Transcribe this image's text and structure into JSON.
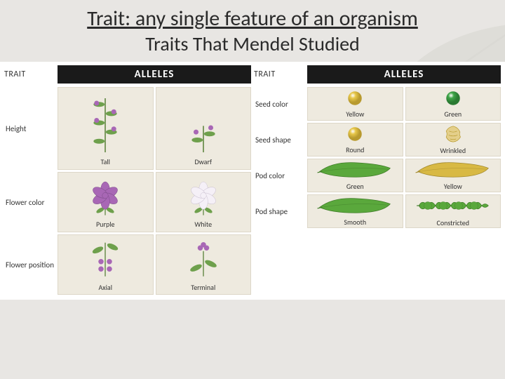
{
  "header": {
    "title": "Trait: any single feature of an organism",
    "subtitle": "Traits That Mendel Studied"
  },
  "column_headers": {
    "trait": "TRAIT",
    "alleles": "ALLELES"
  },
  "colors": {
    "cell_bg": "#eeeadf",
    "header_band": "#1a1a1a",
    "purple_flower": "#a867b5",
    "white_flower": "#f5f0f7",
    "green_plant": "#6ea04c",
    "stem": "#6b8e4e",
    "seed_yellow": "#e8c84a",
    "seed_green": "#3fa648",
    "pod_green": "#5aa83c",
    "pod_yellow": "#d8b944"
  },
  "left": [
    {
      "name": "Height",
      "size": "tall",
      "alleles": [
        {
          "label": "Tall",
          "svg": "plant-tall"
        },
        {
          "label": "Dwarf",
          "svg": "plant-dwarf"
        }
      ]
    },
    {
      "name": "Flower color",
      "size": "med",
      "alleles": [
        {
          "label": "Purple",
          "svg": "flower-purple"
        },
        {
          "label": "White",
          "svg": "flower-white"
        }
      ]
    },
    {
      "name": "Flower position",
      "size": "med",
      "alleles": [
        {
          "label": "Axial",
          "svg": "pos-axial"
        },
        {
          "label": "Terminal",
          "svg": "pos-terminal"
        }
      ]
    }
  ],
  "right": [
    {
      "name": "Seed color",
      "size": "short",
      "alleles": [
        {
          "label": "Yellow",
          "svg": "seed-yellow"
        },
        {
          "label": "Green",
          "svg": "seed-green"
        }
      ]
    },
    {
      "name": "Seed shape",
      "size": "short",
      "alleles": [
        {
          "label": "Round",
          "svg": "seed-round"
        },
        {
          "label": "Wrinkled",
          "svg": "seed-wrinkled"
        }
      ]
    },
    {
      "name": "Pod color",
      "size": "short",
      "alleles": [
        {
          "label": "Green",
          "svg": "pod-green"
        },
        {
          "label": "Yellow",
          "svg": "pod-yellow"
        }
      ]
    },
    {
      "name": "Pod shape",
      "size": "short",
      "alleles": [
        {
          "label": "Smooth",
          "svg": "pod-smooth"
        },
        {
          "label": "Constricted",
          "svg": "pod-constricted"
        }
      ]
    }
  ]
}
